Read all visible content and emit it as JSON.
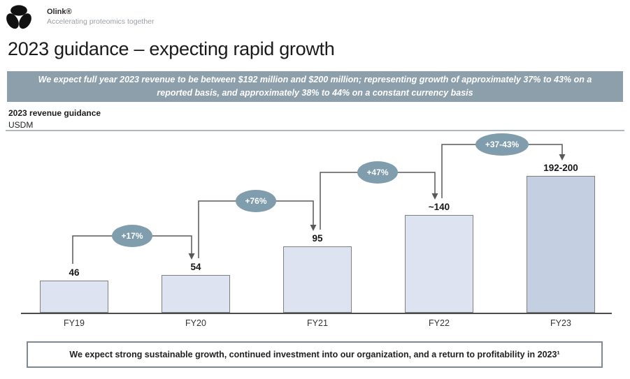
{
  "header": {
    "brand": "Olink®",
    "tagline": "Accelerating proteomics together"
  },
  "title": "2023 guidance – expecting rapid growth",
  "banner": {
    "text": "We expect full year 2023 revenue to be between $192 million and $200 million; representing growth of approximately 37% to 43% on a reported basis, and approximately 38% to 44% on a constant currency basis",
    "bg_color": "#8d9fab"
  },
  "chart_header": {
    "title": "2023 revenue guidance",
    "unit": "USDM"
  },
  "chart_data": {
    "type": "bar",
    "title": "2023 revenue guidance",
    "ylabel": "USDM",
    "categories": [
      "FY19",
      "FY20",
      "FY21",
      "FY22",
      "FY23"
    ],
    "values": [
      46,
      54,
      95,
      140,
      196
    ],
    "value_labels": [
      "46",
      "54",
      "95",
      "~140",
      "192-200"
    ],
    "annotations": [
      {
        "label": "+17%",
        "from": "FY19",
        "to": "FY20"
      },
      {
        "label": "+76%",
        "from": "FY20",
        "to": "FY21"
      },
      {
        "label": "+47%",
        "from": "FY21",
        "to": "FY22"
      },
      {
        "label": "+37-43%",
        "from": "FY22",
        "to": "FY23"
      }
    ],
    "ylim": [
      0,
      210
    ],
    "grid": false,
    "legend": false,
    "colors": {
      "bar_fill": "#dde3f0",
      "guidance_bar_fill": "#c5cfe2",
      "bar_border": "#808080",
      "annotation_fill": "#7f9dac",
      "connector": "#595959"
    }
  },
  "footer_box": {
    "text": "We expect strong sustainable growth, continued investment into our organization, and a return to profitability in 2023¹"
  }
}
